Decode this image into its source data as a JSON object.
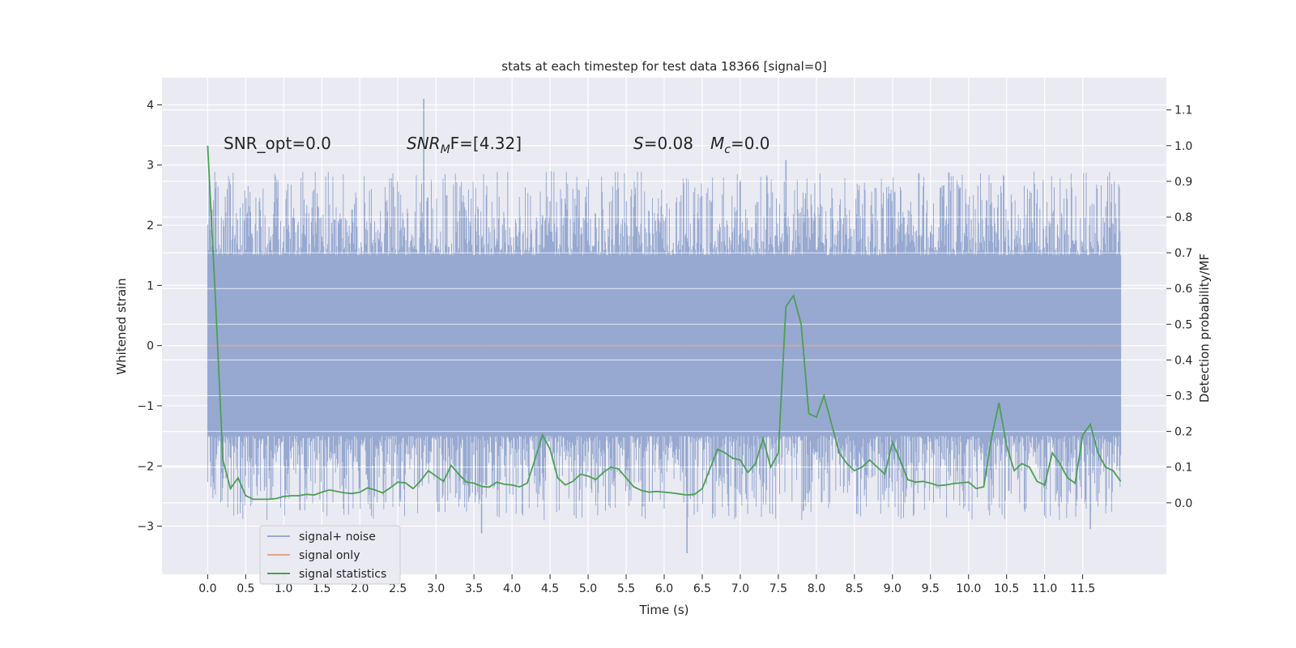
{
  "chart_data": {
    "type": "line",
    "title": "stats at each timestep for test data 18366 [signal=0]",
    "xlabel": "Time (s)",
    "ylabel": "Whitened strain",
    "ylabel_right": "Detection probability/MF",
    "xlim": [
      -0.6,
      12.6
    ],
    "ylim": [
      -3.8,
      4.45
    ],
    "ylim_right": [
      -0.2,
      1.19
    ],
    "xticks": [
      0.0,
      0.5,
      1.0,
      1.5,
      2.0,
      2.5,
      3.0,
      3.5,
      4.0,
      4.5,
      5.0,
      5.5,
      6.0,
      6.5,
      7.0,
      7.5,
      8.0,
      8.5,
      9.0,
      9.5,
      10.0,
      10.5,
      11.0,
      11.5
    ],
    "xtick_labels": [
      "0.0",
      "0.5",
      "1.0",
      "1.5",
      "2.0",
      "2.5",
      "3.0",
      "3.5",
      "4.0",
      "4.5",
      "5.0",
      "5.5",
      "6.0",
      "6.5",
      "7.0",
      "7.5",
      "8.0",
      "8.5",
      "9.0",
      "9.5",
      "10.0",
      "10.5",
      "11.0",
      "11.5"
    ],
    "yticks": [
      -3,
      -2,
      -1,
      0,
      1,
      2,
      3,
      4
    ],
    "ytick_labels": [
      "−3",
      "−2",
      "−1",
      "0",
      "1",
      "2",
      "3",
      "4"
    ],
    "yticks_right": [
      0.0,
      0.1,
      0.2,
      0.3,
      0.4,
      0.5,
      0.6,
      0.7,
      0.8,
      0.9,
      1.0,
      1.1
    ],
    "ytick_labels_right": [
      "0.0",
      "0.1",
      "0.2",
      "0.3",
      "0.4",
      "0.5",
      "0.6",
      "0.7",
      "0.8",
      "0.9",
      "1.0",
      "1.1"
    ],
    "annotations": {
      "snr_opt": "SNR_opt=0.0",
      "snr_mf_main": "SNR",
      "snr_mf_sub": "M",
      "snr_mf_tail": "F=[4.32]",
      "s_main": "S",
      "s_tail": "=0.08",
      "mc_main": "M",
      "mc_sub": "c",
      "mc_tail": "=0.0"
    },
    "legend": {
      "position": "lower-left",
      "entries": [
        "signal+ noise",
        "signal only",
        "signal statistics"
      ]
    },
    "series": [
      {
        "name": "signal+ noise",
        "axis": "left",
        "color": "#97a9d1",
        "style": "dense-noise",
        "x_start": 0.0,
        "x_end": 12.0,
        "band_abs": 1.5,
        "envelope_max_approx": 2.9,
        "peaks": [
          {
            "x": 2.84,
            "y": 4.1
          },
          {
            "x": 7.6,
            "y": 3.08
          },
          {
            "x": 6.3,
            "y": -3.45
          },
          {
            "x": 3.6,
            "y": -3.12
          },
          {
            "x": 11.6,
            "y": -3.05
          },
          {
            "x": 0.1,
            "y": 1.3
          }
        ]
      },
      {
        "name": "signal only",
        "axis": "left",
        "color": "#e8a283",
        "x": [
          0.0,
          12.0
        ],
        "y": [
          0.0,
          0.0
        ]
      },
      {
        "name": "signal statistics",
        "axis": "right",
        "color": "#4c9f55",
        "x": [
          0.0,
          0.1,
          0.2,
          0.3,
          0.4,
          0.5,
          0.6,
          0.7,
          0.8,
          0.9,
          1.0,
          1.1,
          1.2,
          1.3,
          1.4,
          1.5,
          1.6,
          1.7,
          1.8,
          1.9,
          2.0,
          2.1,
          2.2,
          2.3,
          2.4,
          2.5,
          2.6,
          2.7,
          2.8,
          2.9,
          3.0,
          3.1,
          3.2,
          3.3,
          3.4,
          3.5,
          3.6,
          3.7,
          3.8,
          3.9,
          4.0,
          4.1,
          4.2,
          4.3,
          4.4,
          4.5,
          4.6,
          4.7,
          4.8,
          4.9,
          5.0,
          5.1,
          5.2,
          5.3,
          5.4,
          5.5,
          5.6,
          5.7,
          5.8,
          5.9,
          6.0,
          6.1,
          6.2,
          6.3,
          6.4,
          6.5,
          6.6,
          6.7,
          6.8,
          6.9,
          7.0,
          7.1,
          7.2,
          7.3,
          7.4,
          7.5,
          7.6,
          7.7,
          7.8,
          7.9,
          8.0,
          8.1,
          8.2,
          8.3,
          8.4,
          8.5,
          8.6,
          8.7,
          8.8,
          8.9,
          9.0,
          9.1,
          9.2,
          9.3,
          9.4,
          9.5,
          9.6,
          9.7,
          9.8,
          9.9,
          10.0,
          10.1,
          10.2,
          10.3,
          10.4,
          10.5,
          10.6,
          10.7,
          10.8,
          10.9,
          11.0,
          11.1,
          11.2,
          11.3,
          11.4,
          11.5,
          11.6,
          11.7,
          11.8,
          11.9,
          12.0
        ],
        "y": [
          1.0,
          0.58,
          0.12,
          0.04,
          0.07,
          0.02,
          0.01,
          0.01,
          0.01,
          0.012,
          0.018,
          0.02,
          0.02,
          0.024,
          0.022,
          0.03,
          0.036,
          0.032,
          0.028,
          0.026,
          0.03,
          0.042,
          0.036,
          0.028,
          0.042,
          0.058,
          0.056,
          0.04,
          0.062,
          0.09,
          0.075,
          0.06,
          0.105,
          0.08,
          0.058,
          0.055,
          0.046,
          0.044,
          0.058,
          0.052,
          0.05,
          0.045,
          0.055,
          0.12,
          0.19,
          0.15,
          0.07,
          0.05,
          0.06,
          0.08,
          0.075,
          0.065,
          0.085,
          0.1,
          0.095,
          0.07,
          0.045,
          0.035,
          0.03,
          0.032,
          0.03,
          0.028,
          0.025,
          0.022,
          0.024,
          0.04,
          0.095,
          0.15,
          0.14,
          0.125,
          0.12,
          0.085,
          0.11,
          0.18,
          0.1,
          0.14,
          0.55,
          0.58,
          0.5,
          0.25,
          0.24,
          0.3,
          0.22,
          0.14,
          0.11,
          0.09,
          0.1,
          0.12,
          0.1,
          0.08,
          0.17,
          0.12,
          0.065,
          0.058,
          0.06,
          0.055,
          0.048,
          0.05,
          0.054,
          0.056,
          0.058,
          0.04,
          0.045,
          0.18,
          0.28,
          0.16,
          0.09,
          0.11,
          0.1,
          0.06,
          0.05,
          0.14,
          0.11,
          0.07,
          0.055,
          0.19,
          0.22,
          0.14,
          0.1,
          0.09,
          0.06
        ]
      }
    ]
  }
}
